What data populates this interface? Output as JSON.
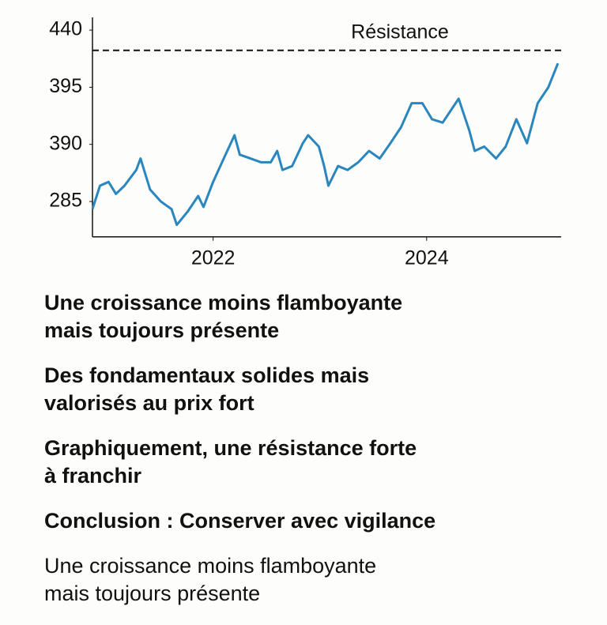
{
  "chart_data": {
    "type": "line",
    "x": [
      2020.87,
      2020.94,
      2021.02,
      2021.09,
      2021.17,
      2021.28,
      2021.32,
      2021.41,
      2021.51,
      2021.61,
      2021.66,
      2021.76,
      2021.86,
      2021.91,
      2022.0,
      2022.1,
      2022.2,
      2022.25,
      2022.35,
      2022.45,
      2022.54,
      2022.6,
      2022.65,
      2022.74,
      2022.84,
      2022.89,
      2022.99,
      2023.04,
      2023.08,
      2023.17,
      2023.26,
      2023.36,
      2023.46,
      2023.56,
      2023.66,
      2023.76,
      2023.86,
      2023.96,
      2024.05,
      2024.15,
      2024.3,
      2024.4,
      2024.45,
      2024.54,
      2024.65,
      2024.74,
      2024.84,
      2024.94,
      2025.04,
      2025.14,
      2025.23
    ],
    "series": [
      {
        "color": "#2a86bf",
        "values": [
          271,
          314,
          321,
          299,
          314,
          343,
          364,
          307,
          285,
          271,
          242,
          266,
          295,
          275,
          321,
          364,
          390.8,
          371,
          364,
          357,
          357,
          378,
          343,
          350,
          390.1,
          390.8,
          386,
          350,
          314,
          350,
          343,
          357,
          378,
          364,
          390.1,
          391.5,
          393.6,
          393.6,
          392.2,
          391.9,
          394.0,
          391.2,
          378,
          386,
          364,
          386,
          392.2,
          390.1,
          393.6,
          395,
          413.8
        ]
      }
    ],
    "xlim": [
      2020.87,
      2025.26
    ],
    "xticks": [
      2022,
      2024
    ],
    "ylim": [
      220,
      450
    ],
    "yticks": [
      285,
      390,
      395,
      440
    ],
    "reference_line": {
      "value": 424,
      "label": "Résistance"
    }
  },
  "sections": [
    {
      "lines": [
        "Une croissance moins flamboyante",
        "mais toujours présente"
      ],
      "bold": true
    },
    {
      "lines": [
        "Des fondamentaux solides mais",
        "valorisés au prix fort"
      ],
      "bold": true
    },
    {
      "lines": [
        "Graphiquement, une résistance forte",
        "à franchir"
      ],
      "bold": true
    },
    {
      "lines": [
        "Conclusion : Conserver avec vigilance"
      ],
      "bold": true
    },
    {
      "lines": [
        "Une croissance moins flamboyante",
        "mais toujours présente"
      ],
      "bold": false
    }
  ]
}
